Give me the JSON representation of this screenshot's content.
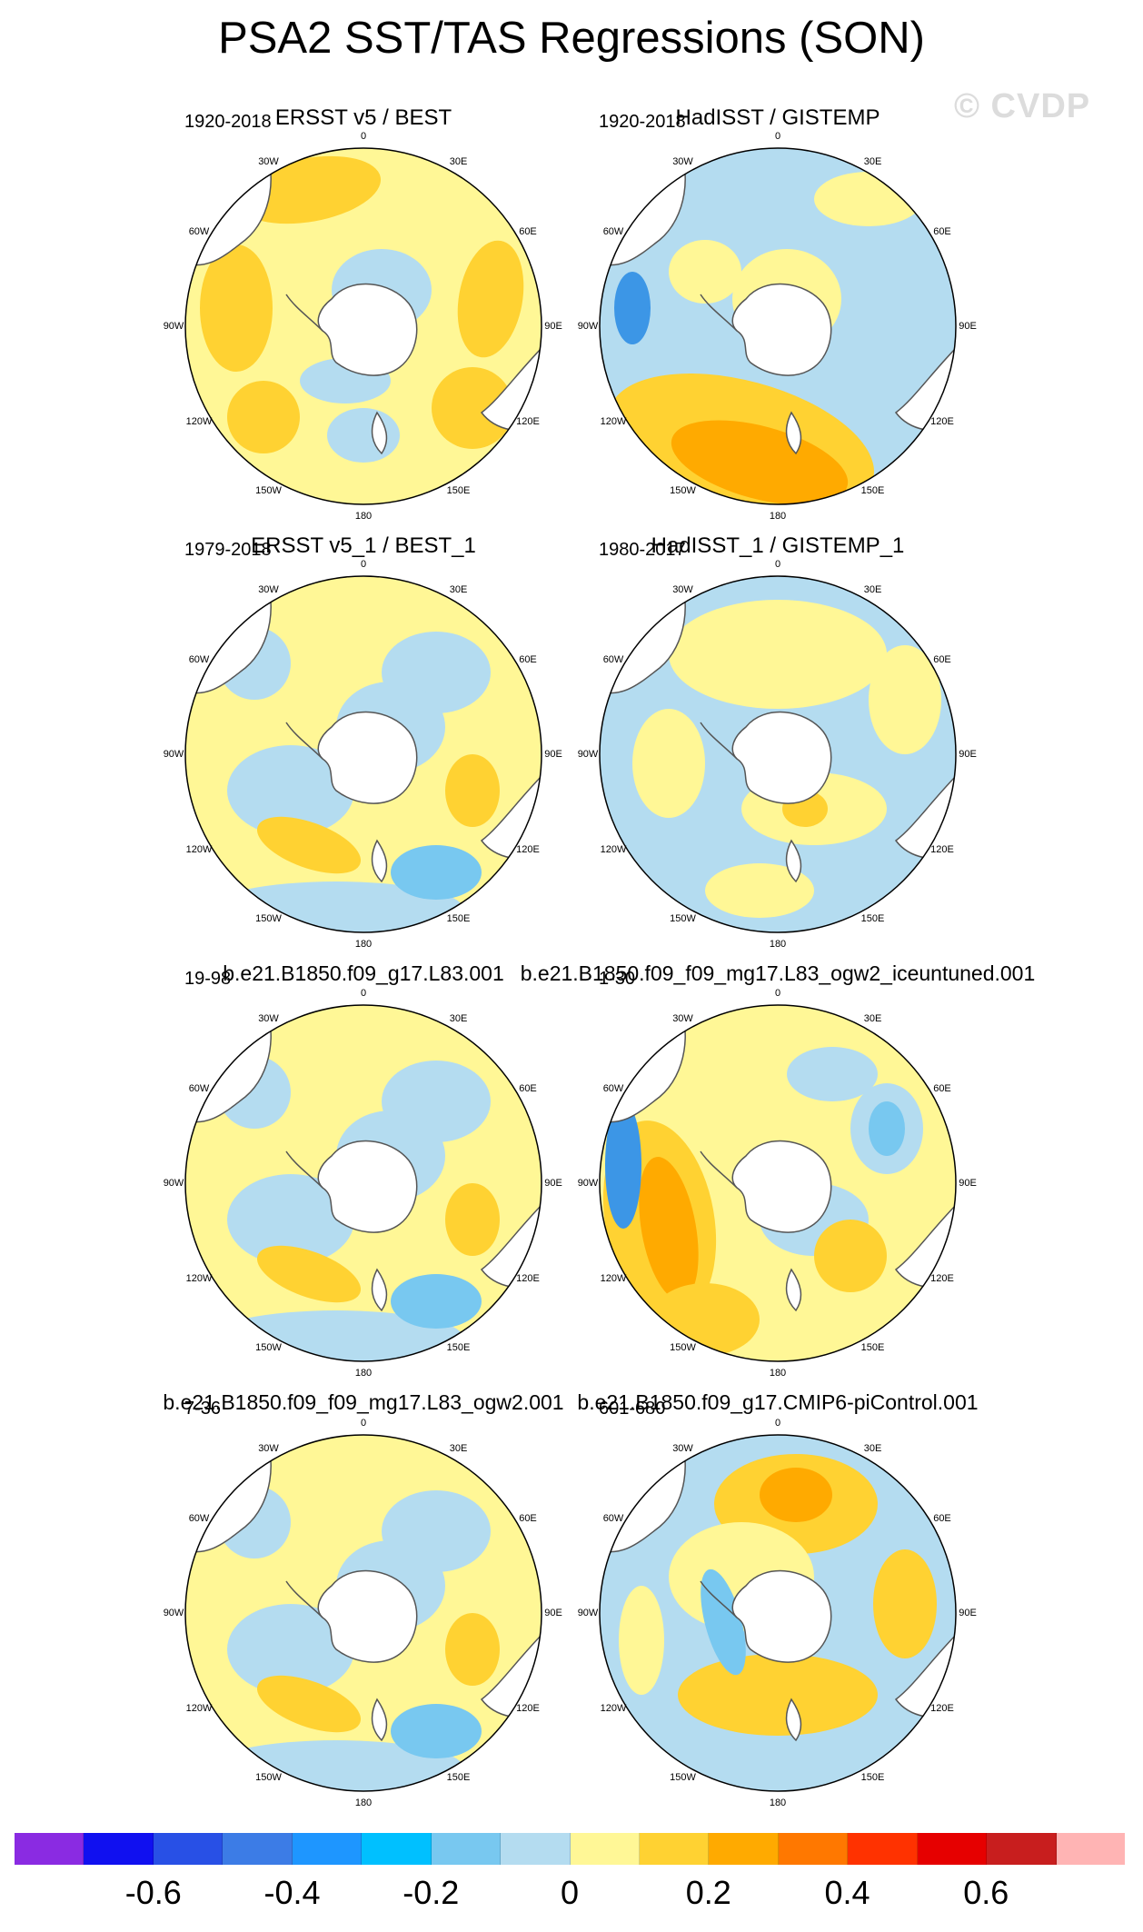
{
  "title": "PSA2 SST/TAS Regressions (SON)",
  "watermark": "© CVDP",
  "longitude_labels": [
    "0",
    "30E",
    "60E",
    "90E",
    "120E",
    "150E",
    "180",
    "150W",
    "120W",
    "90W",
    "60W",
    "30W"
  ],
  "panels": [
    {
      "title": "ERSST v5 / BEST",
      "years": "1920-2018",
      "pattern": "warm"
    },
    {
      "title": "HadISST / GISTEMP",
      "years": "1920-2018",
      "pattern": "cool-warmpacific"
    },
    {
      "title": "ERSST v5_1 / BEST_1",
      "years": "1979-2018",
      "pattern": "mixed"
    },
    {
      "title": "HadISST_1 / GISTEMP_1",
      "years": "1980-2017",
      "pattern": "mixed-cool"
    },
    {
      "title": "b.e21.B1850.f09_g17.L83.001",
      "years": "19-98",
      "pattern": "mixed"
    },
    {
      "title": "b.e21.B1850.f09_f09_mg17.L83_ogw2_iceuntuned.001",
      "years": "1-30",
      "pattern": "warm-arc"
    },
    {
      "title": "b.e21.B1850.f09_f09_mg17.L83_ogw2.001",
      "years": "7-36",
      "pattern": "mixed"
    },
    {
      "title": "b.e21.B1850.f09_g17.CMIP6-piControl.001",
      "years": "601-680",
      "pattern": "warm-band"
    }
  ],
  "colorbar": {
    "colors": [
      "#8a2be2",
      "#1010f0",
      "#2850e6",
      "#3c7ce6",
      "#1e96ff",
      "#00c0ff",
      "#78c8f0",
      "#b4dcf0",
      "#fff796",
      "#ffd232",
      "#ffaa00",
      "#ff7800",
      "#ff3200",
      "#e60000",
      "#c81e1e",
      "#ffb4b4"
    ],
    "labels": [
      "-0.6",
      "-0.4",
      "-0.2",
      "0",
      "0.2",
      "0.4",
      "0.6"
    ],
    "label_values": [
      -0.6,
      -0.4,
      -0.2,
      0,
      0.2,
      0.4,
      0.6
    ]
  },
  "colors": {
    "land": "#ffffff",
    "coast": "#555555",
    "light_blue": "#b4dcf0",
    "blue": "#78c8f0",
    "dark_blue": "#3c96e6",
    "yellow": "#fff796",
    "gold": "#ffd232",
    "orange": "#ffaa00"
  }
}
